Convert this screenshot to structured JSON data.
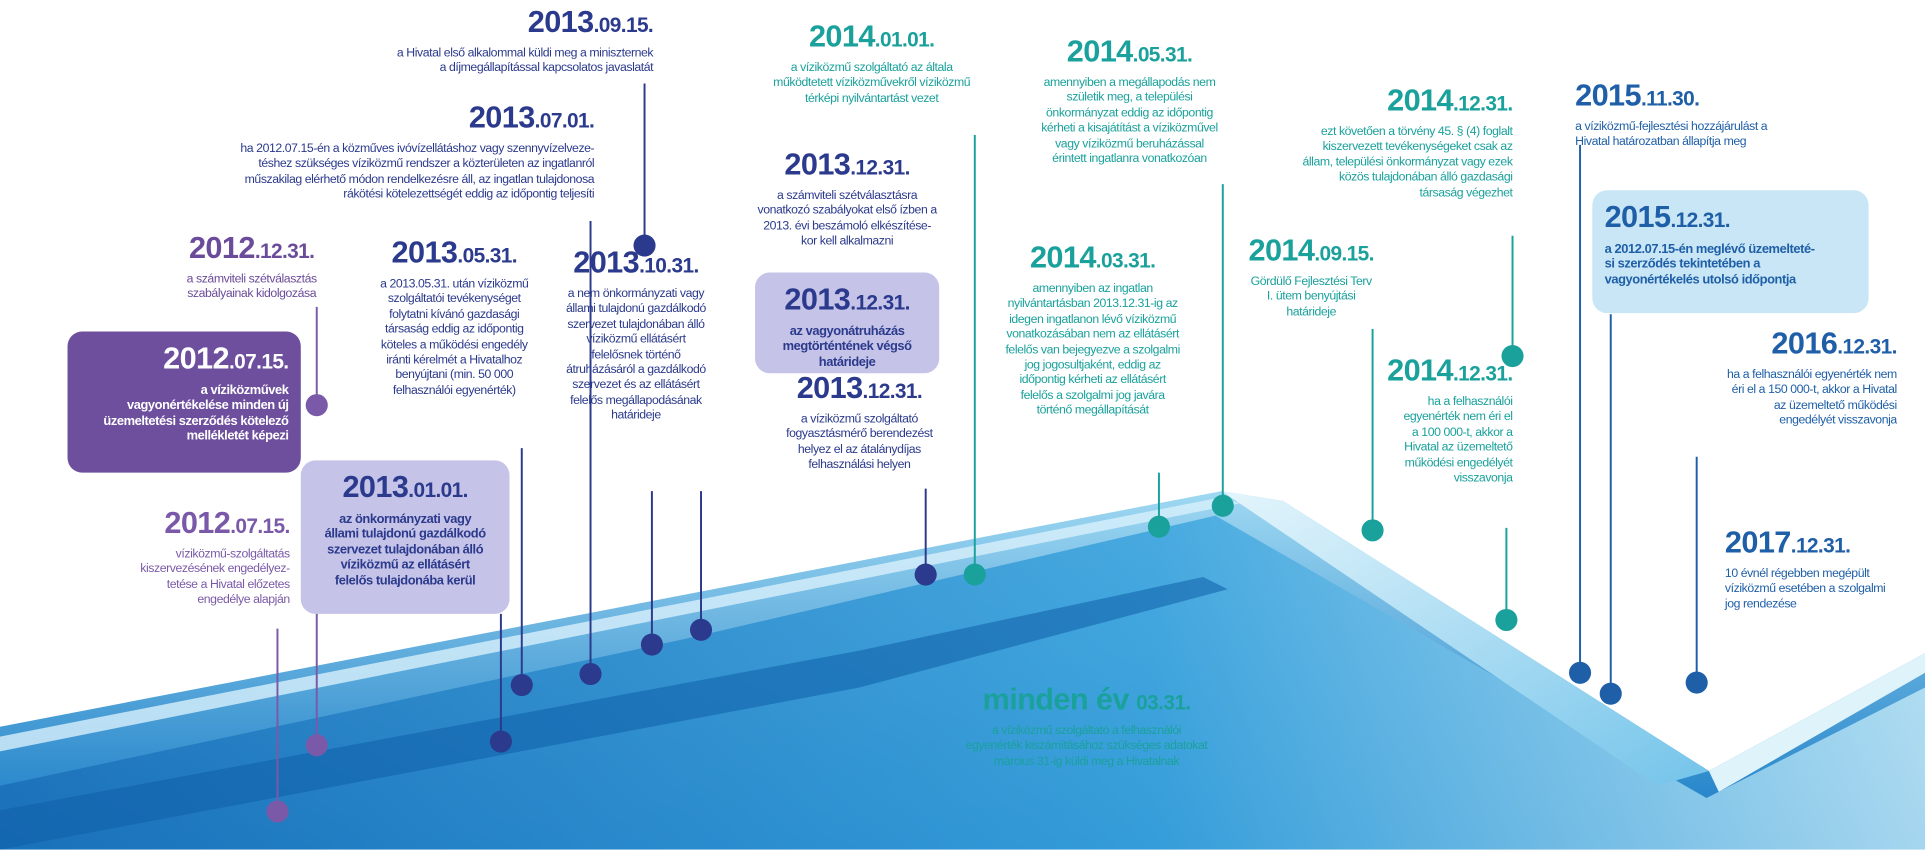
{
  "events": [
    {
      "year": "2012",
      "date": ".12.31.",
      "lines": [
        "a számviteli szétválasztás",
        "szabályainak kidolgozása"
      ]
    },
    {
      "year": "2012",
      "date": ".07.15.",
      "lines": [
        "a víziközművek",
        "vagyonértékelése minden új",
        "üzemeltetési szerződés kötelező",
        "mellékletét képezi"
      ]
    },
    {
      "year": "2012",
      "date": ".07.15.",
      "lines": [
        "víziközmű-szolgáltatás",
        "kiszervezésének engedélyez-",
        "tetése a Hivatal előzetes",
        "engedélye alapján"
      ]
    },
    {
      "year": "2013",
      "date": ".01.01.",
      "lines": [
        "az önkormányzati vagy",
        "állami tulajdonú gazdálkodó",
        "szervezet tulajdonában álló",
        "víziközmű az ellátásért",
        "felelős tulajdonába kerül"
      ]
    },
    {
      "year": "2013",
      "date": ".05.31.",
      "lines": [
        "a 2013.05.31. után víziközmű",
        "szolgáltatói tevékenységet",
        "folytatni kívánó gazdasági",
        "társaság eddig az időpontig",
        "köteles a működési engedély",
        "iránti kérelmét a Hivatalhoz",
        "benyújtani (min. 50 000",
        "felhasználói egyenérték)"
      ]
    },
    {
      "year": "2013",
      "date": ".07.01.",
      "lines": [
        "ha 2012.07.15-én a közműves ivóvízellátáshoz vagy szennyvízelveze-",
        "téshez szükséges víziközmű rendszer a közterületen az ingatlanról",
        "műszakilag elérhető módon rendelkezésre áll, az ingatlan tulajdonosa",
        "rákötési kötelezettségét eddig az időpontig teljesíti"
      ]
    },
    {
      "year": "2013",
      "date": ".09.15.",
      "lines": [
        "a Hivatal első alkalommal küldi meg a miniszternek",
        "a díjmegállapítással kapcsolatos javaslatát"
      ]
    },
    {
      "year": "2013",
      "date": ".10.31.",
      "lines": [
        "a nem önkormányzati vagy",
        "állami tulajdonú gazdálkodó",
        "szervezet tulajdonában álló",
        "víziközmű ellátásért",
        "felelősnek történő",
        "átruházásáról a gazdálkodó",
        "szervezet és az ellátásért",
        "felelős megállapodásának",
        "határideje"
      ]
    },
    {
      "year": "2013",
      "date": ".12.31.",
      "lines": [
        "a számviteli szétválasztásra",
        "vonatkozó szabályokat első ízben a",
        "2013. évi beszámoló elkészítése-",
        "kor kell alkalmazni"
      ]
    },
    {
      "year": "2013",
      "date": ".12.31.",
      "lines": [
        "az vagyonátruházás",
        "megtörténtének végső",
        "határideje"
      ]
    },
    {
      "year": "2013",
      "date": ".12.31.",
      "lines": [
        "a víziközmű szolgáltató",
        "fogyasztásmérő berendezést",
        "helyez el az átalánydíjas",
        "felhasználási helyen"
      ]
    },
    {
      "year": "2014",
      "date": ".01.01.",
      "lines": [
        "a víziközmű szolgáltató az általa",
        "működtetett víziközművekről víziközmű",
        "térképi nyilvántartást vezet"
      ]
    },
    {
      "year": "2014",
      "date": ".03.31.",
      "lines": [
        "amennyiben az ingatlan",
        "nyilvántartásban 2013.12.31-ig az",
        "idegen ingatlanon lévő víziközmű",
        "vonatkozásában nem az ellátásért",
        "felelős van bejegyezve a szolgalmi",
        "jog jogosultjaként, eddig az",
        "időpontig kérheti az ellátásért",
        "felelős a szolgalmi jog javára",
        "történő megállapítását"
      ]
    },
    {
      "year": "2014",
      "date": ".05.31.",
      "lines": [
        "amennyiben a megállapodás nem",
        "születik meg, a települési",
        "önkormányzat eddig az időpontig",
        "kérheti a kisajátítást a víziközművel",
        "vagy víziközmű beruházással",
        "érintett ingatlanra vonatkozóan"
      ]
    },
    {
      "year": "2014",
      "date": ".09.15.",
      "lines": [
        "Gördülő Fejlesztési Terv",
        "I. ütem benyújtási",
        "határideje"
      ]
    },
    {
      "year": "2014",
      "date": ".12.31.",
      "lines": [
        "ezt követően a törvény 45. § (4) foglalt",
        "kiszervezett tevékenységeket csak az",
        "állam, települési önkormányzat vagy ezek",
        "közös tulajdonában álló gazdasági",
        "társaság végezhet"
      ]
    },
    {
      "year": "2014",
      "date": ".12.31.",
      "lines": [
        "ha a felhasználói",
        "egyenérték nem éri el",
        "a 100 000-t, akkor a",
        "Hivatal az üzemeltető",
        "működési engedélyét",
        "visszavonja"
      ]
    },
    {
      "year": "2015",
      "date": ".11.30.",
      "lines": [
        "a víziközmű-fejlesztési hozzájárulást a",
        "Hivatal határozatban állapítja meg"
      ]
    },
    {
      "year": "2015",
      "date": ".12.31.",
      "lines": [
        "a 2012.07.15-én meglévő üzemelteté-",
        "si szerződés tekintetében a",
        "vagyonértékelés utolsó időpontja"
      ]
    },
    {
      "year": "2016",
      "date": ".12.31.",
      "lines": [
        "ha a felhasználói egyenérték nem",
        "éri el a 150 000-t, akkor a Hivatal",
        "az üzemeltető működési",
        "engedélyét visszavonja"
      ]
    },
    {
      "year": "2017",
      "date": ".12.31.",
      "lines": [
        "10 évnél régebben megépült",
        "víziközmű esetében a szolgalmi",
        "jog rendezése"
      ]
    },
    {
      "year": "minden év",
      "date": "03.31.",
      "lines": [
        "a víziközmű szolgáltató a felhasználói",
        "egyenérték kiszámításához szükséges adatokat",
        "március 31-ig küldi meg a Hivatalnak"
      ]
    }
  ]
}
